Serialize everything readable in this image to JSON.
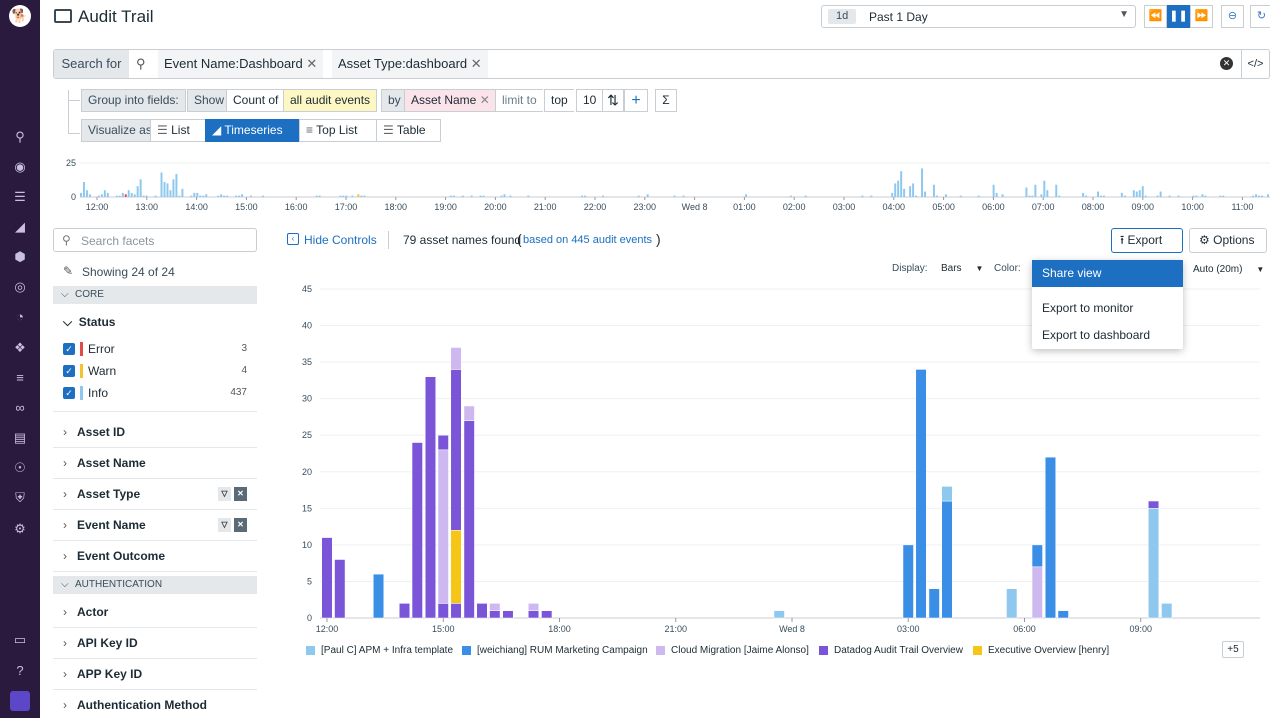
{
  "app": {
    "title": "Audit Trail"
  },
  "time": {
    "badge": "1d",
    "value": "Past 1 Day"
  },
  "search": {
    "label": "Search for",
    "chips": [
      "Event Name:Dashboard",
      "Asset Type:dashboard"
    ]
  },
  "query": {
    "group_label": "Group into fields:",
    "show_label": "Show",
    "count_of": "Count of",
    "all_events": "all audit events",
    "by_label": "by",
    "by_field": "Asset Name",
    "limit_label": "limit to",
    "limit_mode": "top",
    "limit_value": "10"
  },
  "visualize": {
    "label": "Visualize as",
    "options": [
      "List",
      "Timeseries",
      "Top List",
      "Table"
    ],
    "active": "Timeseries"
  },
  "overview": {
    "y_ticks": [
      "25",
      "0"
    ],
    "x_ticks": [
      "12:00",
      "13:00",
      "14:00",
      "15:00",
      "16:00",
      "17:00",
      "18:00",
      "19:00",
      "20:00",
      "21:00",
      "22:00",
      "23:00",
      "Wed 8",
      "01:00",
      "02:00",
      "03:00",
      "04:00",
      "05:00",
      "06:00",
      "07:00",
      "08:00",
      "09:00",
      "10:00",
      "11:00"
    ]
  },
  "facets": {
    "search_placeholder": "Search facets",
    "showing": "Showing 24 of 24",
    "core": "CORE",
    "status_title": "Status",
    "status": [
      {
        "label": "Error",
        "count": "3",
        "color": "#e04a4a"
      },
      {
        "label": "Warn",
        "count": "4",
        "color": "#f2c230"
      },
      {
        "label": "Info",
        "count": "437",
        "color": "#8fc8ef"
      }
    ],
    "core_items": [
      "Asset ID",
      "Asset Name",
      "Asset Type",
      "Event Name",
      "Event Outcome"
    ],
    "auth": "AUTHENTICATION",
    "auth_items": [
      "Actor",
      "API Key ID",
      "APP Key ID",
      "Authentication Method"
    ]
  },
  "results": {
    "hide_controls": "Hide Controls",
    "found": "79 asset names found",
    "based_on": "based on 445 audit events",
    "export": "Export",
    "options": "Options",
    "display_label": "Display:",
    "display_value": "Bars",
    "color_label": "Color:",
    "rollup": "Auto (20m)"
  },
  "export_menu": [
    "Share view",
    "Export to monitor",
    "Export to dashboard"
  ],
  "legend_more": "+5",
  "chart_data": {
    "type": "bar",
    "stacked": true,
    "xlabel": "",
    "ylabel": "",
    "ylim": [
      0,
      45
    ],
    "y_ticks": [
      0,
      5,
      10,
      15,
      20,
      25,
      30,
      35,
      40,
      45
    ],
    "x_ticks": [
      "12:00",
      "15:00",
      "18:00",
      "21:00",
      "Wed 8",
      "03:00",
      "06:00",
      "09:00"
    ],
    "x_domain_hours": [
      12,
      36
    ],
    "series": [
      {
        "name": "[Paul C] APM + Infra template",
        "color": "#8fc8ef"
      },
      {
        "name": "[weichiang] RUM Marketing Campaign",
        "color": "#3a8ee6"
      },
      {
        "name": "Cloud Migration [Jaime Alonso]",
        "color": "#cdb9f0"
      },
      {
        "name": "Datadog Audit Trail Overview",
        "color": "#7a55d8"
      },
      {
        "name": "Executive Overview [henry]",
        "color": "#f5c518"
      }
    ],
    "points": [
      {
        "t": 12.0,
        "segments": [
          {
            "s": 3,
            "v": 11
          }
        ]
      },
      {
        "t": 12.33,
        "segments": [
          {
            "s": 3,
            "v": 8
          }
        ]
      },
      {
        "t": 13.33,
        "segments": [
          {
            "s": 1,
            "v": 6
          }
        ]
      },
      {
        "t": 14.0,
        "segments": [
          {
            "s": 3,
            "v": 2
          }
        ]
      },
      {
        "t": 14.33,
        "segments": [
          {
            "s": 3,
            "v": 24
          }
        ]
      },
      {
        "t": 14.67,
        "segments": [
          {
            "s": 3,
            "v": 33
          }
        ]
      },
      {
        "t": 15.0,
        "segments": [
          {
            "s": 3,
            "v": 2
          },
          {
            "s": 2,
            "v": 21
          },
          {
            "s": 3,
            "v": 2
          }
        ]
      },
      {
        "t": 15.33,
        "segments": [
          {
            "s": 3,
            "v": 2
          },
          {
            "s": 4,
            "v": 10
          },
          {
            "s": 3,
            "v": 22
          },
          {
            "s": 2,
            "v": 3
          }
        ]
      },
      {
        "t": 15.67,
        "segments": [
          {
            "s": 3,
            "v": 27
          },
          {
            "s": 2,
            "v": 2
          }
        ]
      },
      {
        "t": 16.0,
        "segments": [
          {
            "s": 3,
            "v": 2
          }
        ]
      },
      {
        "t": 16.33,
        "segments": [
          {
            "s": 3,
            "v": 1
          },
          {
            "s": 2,
            "v": 1
          }
        ]
      },
      {
        "t": 16.67,
        "segments": [
          {
            "s": 3,
            "v": 1
          }
        ]
      },
      {
        "t": 17.33,
        "segments": [
          {
            "s": 3,
            "v": 1
          },
          {
            "s": 2,
            "v": 1
          }
        ]
      },
      {
        "t": 17.67,
        "segments": [
          {
            "s": 3,
            "v": 1
          }
        ]
      },
      {
        "t": 23.67,
        "segments": [
          {
            "s": 0,
            "v": 1
          }
        ]
      },
      {
        "t": 27.0,
        "segments": [
          {
            "s": 1,
            "v": 10
          }
        ]
      },
      {
        "t": 27.33,
        "segments": [
          {
            "s": 1,
            "v": 34
          }
        ]
      },
      {
        "t": 27.67,
        "segments": [
          {
            "s": 1,
            "v": 4
          }
        ]
      },
      {
        "t": 28.0,
        "segments": [
          {
            "s": 1,
            "v": 16
          },
          {
            "s": 0,
            "v": 2
          }
        ]
      },
      {
        "t": 29.67,
        "segments": [
          {
            "s": 0,
            "v": 4
          }
        ]
      },
      {
        "t": 30.33,
        "segments": [
          {
            "s": 2,
            "v": 7
          },
          {
            "s": 1,
            "v": 3
          }
        ]
      },
      {
        "t": 30.67,
        "segments": [
          {
            "s": 1,
            "v": 22
          }
        ]
      },
      {
        "t": 31.0,
        "segments": [
          {
            "s": 1,
            "v": 1
          }
        ]
      },
      {
        "t": 33.33,
        "segments": [
          {
            "s": 0,
            "v": 15
          },
          {
            "s": 3,
            "v": 1
          }
        ]
      },
      {
        "t": 33.67,
        "segments": [
          {
            "s": 0,
            "v": 2
          }
        ]
      }
    ]
  },
  "overview_data": {
    "type": "bar",
    "ylim": [
      0,
      25
    ],
    "note_colors": {
      "info": "#8fc8ef",
      "error": "#e04a4a",
      "warn": "#f2c230"
    },
    "values": [
      3,
      11,
      5,
      2,
      0,
      0,
      1,
      2,
      5,
      3,
      0,
      0,
      1,
      1,
      3,
      2,
      5,
      3,
      2,
      8,
      13,
      1,
      1,
      0,
      0,
      1,
      0,
      18,
      11,
      10,
      5,
      13,
      17,
      1,
      6,
      0,
      0,
      1,
      3,
      3,
      1,
      1,
      2,
      0,
      0,
      0,
      1,
      2,
      1,
      1,
      0,
      0,
      1,
      1,
      2,
      0,
      0,
      1,
      0,
      0,
      0,
      1,
      0,
      0,
      0,
      0,
      0,
      0,
      0,
      0,
      0,
      0,
      0,
      0,
      0,
      0,
      0,
      0,
      0,
      1,
      1,
      0,
      0,
      0,
      0,
      0,
      0,
      1,
      1,
      1,
      0,
      1,
      0,
      2,
      1,
      1,
      0,
      0,
      0,
      0,
      0,
      0,
      0,
      0,
      0,
      0,
      0,
      0,
      0,
      0,
      0,
      0,
      0,
      0,
      0,
      0,
      0,
      0,
      0,
      0,
      0,
      0,
      0,
      0,
      1,
      1,
      0,
      0,
      1,
      0,
      0,
      1,
      0,
      0,
      1,
      1,
      0,
      0,
      0,
      0,
      0,
      1,
      2,
      0,
      1,
      0,
      0,
      0,
      0,
      0,
      1,
      0,
      0,
      0,
      0,
      0,
      0,
      0,
      0,
      0,
      0,
      0,
      0,
      0,
      0,
      0,
      0,
      0,
      1,
      1,
      0,
      0,
      0,
      0,
      0,
      1,
      0,
      0,
      0,
      0,
      0,
      0,
      0,
      0,
      0,
      0,
      0,
      1,
      0,
      0,
      2,
      0,
      0,
      0,
      0,
      0,
      0,
      0,
      0,
      1,
      0,
      0,
      1,
      0,
      0,
      0,
      0,
      0,
      0,
      0,
      0,
      0,
      0,
      0,
      0,
      0,
      0,
      0,
      0,
      0,
      0,
      0,
      0,
      2,
      0,
      0,
      0,
      0,
      0,
      0,
      0,
      0,
      0,
      0,
      0,
      0,
      0,
      0,
      1,
      0,
      0,
      0,
      0,
      1,
      0,
      0,
      0,
      0,
      0,
      0,
      0,
      0,
      0,
      0,
      0,
      0,
      0,
      0,
      0,
      0,
      0,
      0,
      1,
      0,
      0,
      1,
      0,
      0,
      0,
      0,
      0,
      0,
      3,
      10,
      12,
      19,
      6,
      0,
      8,
      10,
      1,
      0,
      21,
      4,
      0,
      0,
      9,
      1,
      0,
      0,
      2,
      0,
      0,
      0,
      0,
      1,
      0,
      0,
      0,
      0,
      0,
      1,
      0,
      0,
      0,
      0,
      9,
      3,
      0,
      2,
      0,
      0,
      0,
      0,
      0,
      0,
      0,
      7,
      1,
      1,
      9,
      0,
      2,
      12,
      5,
      0,
      0,
      9,
      1,
      0,
      0,
      0,
      0,
      0,
      0,
      0,
      3,
      1,
      0,
      0,
      0,
      4,
      1,
      1,
      0,
      0,
      0,
      0,
      0,
      3,
      1,
      0,
      0,
      5,
      4,
      5,
      8,
      1,
      0,
      0,
      0,
      1,
      4,
      0,
      0,
      1,
      0,
      0,
      1,
      0,
      0,
      0,
      0,
      1,
      1,
      0,
      2,
      1,
      0,
      0,
      0,
      0,
      1,
      1,
      0,
      0,
      0,
      0,
      0,
      0,
      0,
      0,
      0,
      1,
      2,
      1,
      1,
      0,
      2
    ],
    "error_index": 15,
    "warn_index": 93
  }
}
